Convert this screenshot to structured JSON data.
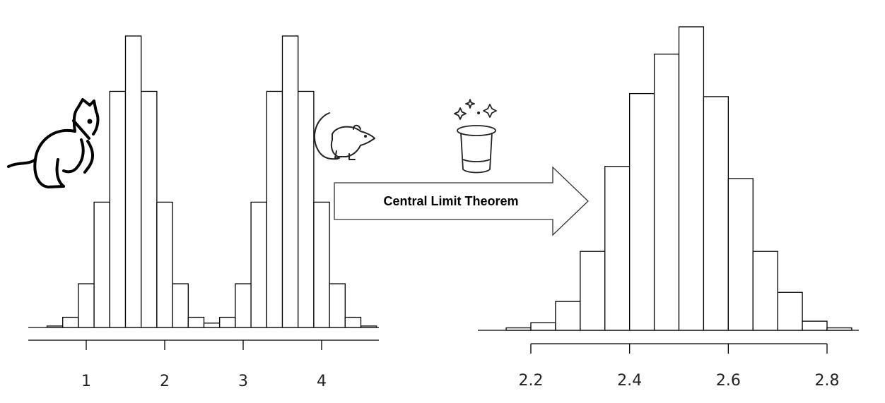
{
  "arrow": {
    "label": "Central Limit Theorem"
  },
  "icons": {
    "left": "cat-icon",
    "middle": "mouse-icon",
    "top": "magic-hat-icon"
  },
  "chart_data": [
    {
      "type": "bar",
      "subtype": "histogram",
      "title": "",
      "xlabel": "",
      "ylabel": "",
      "xlim": [
        0.35,
        4.65
      ],
      "ylim": [
        0,
        100
      ],
      "x_ticks": [
        1,
        2,
        3,
        4
      ],
      "bin_width": 0.2,
      "bins": [
        {
          "x0": 0.5,
          "x1": 0.7,
          "value": 0.5
        },
        {
          "x0": 0.7,
          "x1": 0.9,
          "value": 3.5
        },
        {
          "x0": 0.9,
          "x1": 1.1,
          "value": 15
        },
        {
          "x0": 1.1,
          "x1": 1.3,
          "value": 43
        },
        {
          "x0": 1.3,
          "x1": 1.5,
          "value": 81
        },
        {
          "x0": 1.5,
          "x1": 1.7,
          "value": 100
        },
        {
          "x0": 1.7,
          "x1": 1.9,
          "value": 81
        },
        {
          "x0": 1.9,
          "x1": 2.1,
          "value": 43
        },
        {
          "x0": 2.1,
          "x1": 2.3,
          "value": 15
        },
        {
          "x0": 2.3,
          "x1": 2.5,
          "value": 3.5
        },
        {
          "x0": 2.5,
          "x1": 2.7,
          "value": 1.5
        },
        {
          "x0": 2.7,
          "x1": 2.9,
          "value": 3.5
        },
        {
          "x0": 2.9,
          "x1": 3.1,
          "value": 15
        },
        {
          "x0": 3.1,
          "x1": 3.3,
          "value": 43
        },
        {
          "x0": 3.3,
          "x1": 3.5,
          "value": 81
        },
        {
          "x0": 3.5,
          "x1": 3.7,
          "value": 100
        },
        {
          "x0": 3.7,
          "x1": 3.9,
          "value": 81
        },
        {
          "x0": 3.9,
          "x1": 4.1,
          "value": 43
        },
        {
          "x0": 4.1,
          "x1": 4.3,
          "value": 15
        },
        {
          "x0": 4.3,
          "x1": 4.5,
          "value": 3.5
        },
        {
          "x0": 4.5,
          "x1": 4.7,
          "value": 0.5
        }
      ]
    },
    {
      "type": "bar",
      "subtype": "histogram",
      "title": "",
      "xlabel": "",
      "ylabel": "",
      "xlim": [
        2.13,
        2.86
      ],
      "ylim": [
        0,
        100
      ],
      "x_ticks": [
        2.2,
        2.4,
        2.6,
        2.8
      ],
      "bin_width": 0.05,
      "bins": [
        {
          "x0": 2.15,
          "x1": 2.2,
          "value": 0.8
        },
        {
          "x0": 2.2,
          "x1": 2.25,
          "value": 2.5
        },
        {
          "x0": 2.25,
          "x1": 2.3,
          "value": 9.5
        },
        {
          "x0": 2.3,
          "x1": 2.35,
          "value": 26
        },
        {
          "x0": 2.35,
          "x1": 2.4,
          "value": 54
        },
        {
          "x0": 2.4,
          "x1": 2.45,
          "value": 78
        },
        {
          "x0": 2.45,
          "x1": 2.5,
          "value": 91
        },
        {
          "x0": 2.5,
          "x1": 2.55,
          "value": 100
        },
        {
          "x0": 2.55,
          "x1": 2.6,
          "value": 77
        },
        {
          "x0": 2.6,
          "x1": 2.65,
          "value": 50
        },
        {
          "x0": 2.65,
          "x1": 2.7,
          "value": 26
        },
        {
          "x0": 2.7,
          "x1": 2.75,
          "value": 12.5
        },
        {
          "x0": 2.75,
          "x1": 2.8,
          "value": 3
        },
        {
          "x0": 2.8,
          "x1": 2.85,
          "value": 0.8
        }
      ]
    }
  ]
}
